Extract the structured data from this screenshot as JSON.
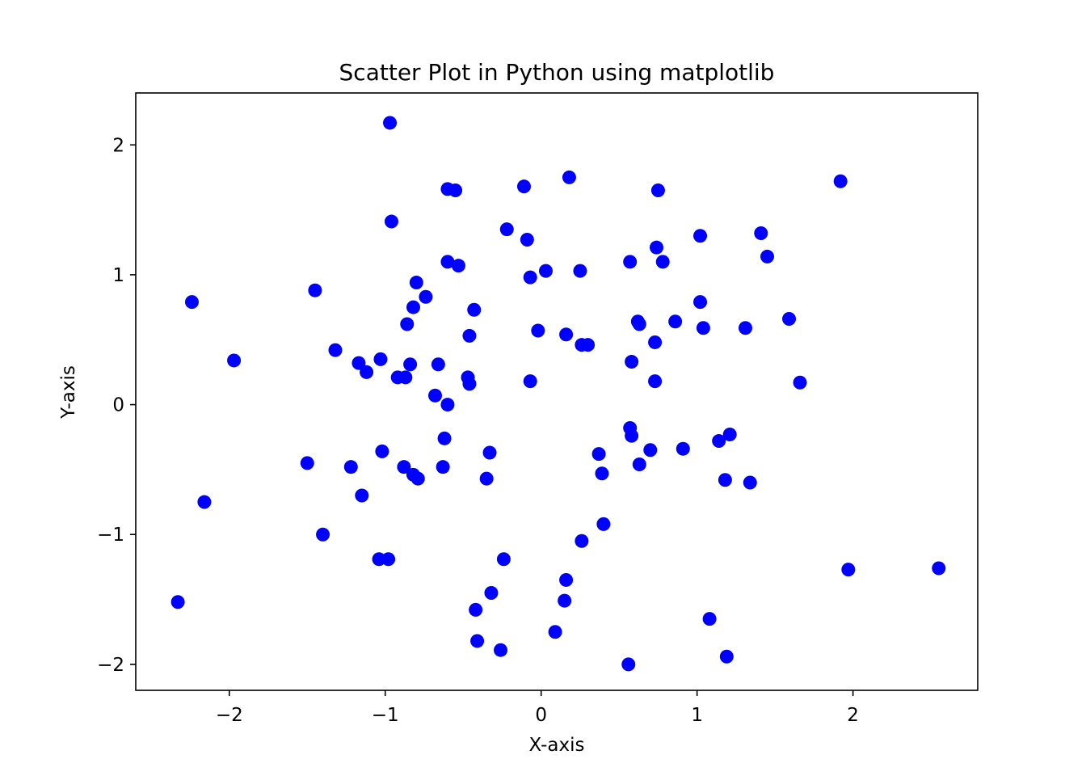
{
  "chart_data": {
    "type": "scatter",
    "title": "Scatter Plot in Python using matplotlib",
    "xlabel": "X-axis",
    "ylabel": "Y-axis",
    "xlim": [
      -2.6,
      2.8
    ],
    "ylim": [
      -2.2,
      2.4
    ],
    "xticks": [
      -2,
      -1,
      0,
      1,
      2
    ],
    "yticks": [
      -2,
      -1,
      0,
      1,
      2
    ],
    "xtick_labels": [
      "−2",
      "−1",
      "0",
      "1",
      "2"
    ],
    "ytick_labels": [
      "−2",
      "−1",
      "0",
      "1",
      "2"
    ],
    "grid": false,
    "marker_color": "#0000ff",
    "series": [
      {
        "name": "",
        "points": [
          [
            -0.97,
            2.17
          ],
          [
            -0.96,
            1.41
          ],
          [
            0.18,
            1.75
          ],
          [
            1.92,
            1.72
          ],
          [
            -0.6,
            1.66
          ],
          [
            -0.55,
            1.65
          ],
          [
            -0.11,
            1.68
          ],
          [
            0.75,
            1.65
          ],
          [
            -0.22,
            1.35
          ],
          [
            -0.09,
            1.27
          ],
          [
            0.74,
            1.21
          ],
          [
            1.02,
            1.3
          ],
          [
            1.41,
            1.32
          ],
          [
            1.45,
            1.14
          ],
          [
            -0.6,
            1.1
          ],
          [
            -0.53,
            1.07
          ],
          [
            0.03,
            1.03
          ],
          [
            0.25,
            1.03
          ],
          [
            0.57,
            1.1
          ],
          [
            0.78,
            1.1
          ],
          [
            -0.07,
            0.98
          ],
          [
            -0.8,
            0.94
          ],
          [
            -1.45,
            0.88
          ],
          [
            -2.24,
            0.79
          ],
          [
            -0.74,
            0.83
          ],
          [
            -0.82,
            0.75
          ],
          [
            -0.43,
            0.73
          ],
          [
            1.02,
            0.79
          ],
          [
            -0.86,
            0.62
          ],
          [
            -0.46,
            0.53
          ],
          [
            -0.02,
            0.57
          ],
          [
            0.16,
            0.54
          ],
          [
            0.62,
            0.64
          ],
          [
            0.63,
            0.62
          ],
          [
            0.86,
            0.64
          ],
          [
            1.04,
            0.59
          ],
          [
            1.31,
            0.59
          ],
          [
            1.59,
            0.66
          ],
          [
            0.73,
            0.48
          ],
          [
            0.26,
            0.46
          ],
          [
            0.3,
            0.46
          ],
          [
            -1.32,
            0.42
          ],
          [
            -1.17,
            0.32
          ],
          [
            -1.03,
            0.35
          ],
          [
            -1.12,
            0.25
          ],
          [
            -1.97,
            0.34
          ],
          [
            -0.84,
            0.31
          ],
          [
            -0.66,
            0.31
          ],
          [
            -0.92,
            0.21
          ],
          [
            -0.87,
            0.21
          ],
          [
            -0.47,
            0.21
          ],
          [
            -0.46,
            0.16
          ],
          [
            -0.07,
            0.18
          ],
          [
            0.58,
            0.33
          ],
          [
            0.73,
            0.18
          ],
          [
            1.66,
            0.17
          ],
          [
            -0.68,
            0.07
          ],
          [
            -0.6,
            0.0
          ],
          [
            0.57,
            -0.18
          ],
          [
            0.58,
            -0.24
          ],
          [
            -0.62,
            -0.26
          ],
          [
            0.7,
            -0.35
          ],
          [
            0.91,
            -0.34
          ],
          [
            1.14,
            -0.28
          ],
          [
            1.21,
            -0.23
          ],
          [
            -1.02,
            -0.36
          ],
          [
            -0.33,
            -0.37
          ],
          [
            0.37,
            -0.38
          ],
          [
            -1.5,
            -0.45
          ],
          [
            -1.22,
            -0.48
          ],
          [
            -0.88,
            -0.48
          ],
          [
            -0.63,
            -0.48
          ],
          [
            0.63,
            -0.46
          ],
          [
            -0.82,
            -0.54
          ],
          [
            -0.79,
            -0.57
          ],
          [
            -0.35,
            -0.57
          ],
          [
            0.39,
            -0.53
          ],
          [
            1.18,
            -0.58
          ],
          [
            1.34,
            -0.6
          ],
          [
            -1.15,
            -0.7
          ],
          [
            -2.16,
            -0.75
          ],
          [
            0.4,
            -0.92
          ],
          [
            -1.4,
            -1.0
          ],
          [
            0.26,
            -1.05
          ],
          [
            -1.04,
            -1.19
          ],
          [
            -0.98,
            -1.19
          ],
          [
            -0.24,
            -1.19
          ],
          [
            1.97,
            -1.27
          ],
          [
            2.55,
            -1.26
          ],
          [
            0.16,
            -1.35
          ],
          [
            -0.32,
            -1.45
          ],
          [
            0.15,
            -1.51
          ],
          [
            -2.33,
            -1.52
          ],
          [
            -0.42,
            -1.58
          ],
          [
            1.08,
            -1.65
          ],
          [
            0.09,
            -1.75
          ],
          [
            -0.41,
            -1.82
          ],
          [
            -0.26,
            -1.89
          ],
          [
            1.19,
            -1.94
          ],
          [
            0.56,
            -2.0
          ]
        ]
      }
    ]
  }
}
